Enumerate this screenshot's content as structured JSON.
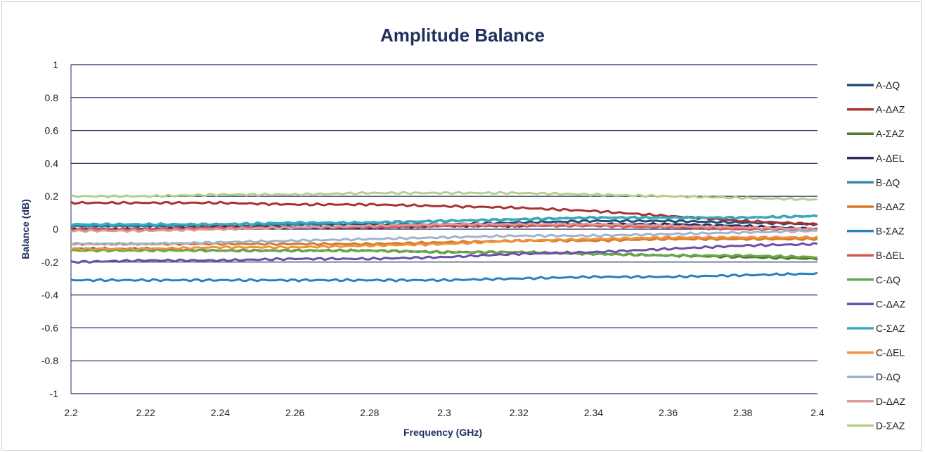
{
  "chart_data": {
    "type": "line",
    "title": "Amplitude Balance",
    "xlabel": "Frequency (GHz)",
    "ylabel": "Balance (dB)",
    "xlim": [
      2.2,
      2.4
    ],
    "ylim": [
      -1,
      1
    ],
    "x_ticks": [
      "2.2",
      "2.22",
      "2.24",
      "2.26",
      "2.28",
      "2.3",
      "2.32",
      "2.34",
      "2.36",
      "2.38",
      "2.4"
    ],
    "y_ticks": [
      "1",
      "0.8",
      "0.6",
      "0.4",
      "0.2",
      "0",
      "-0.2",
      "-0.4",
      "-0.6",
      "-0.8",
      "-1"
    ],
    "grid": "horizontal",
    "legend_position": "right",
    "x": [
      2.2,
      2.22,
      2.24,
      2.26,
      2.28,
      2.3,
      2.32,
      2.34,
      2.36,
      2.38,
      2.4
    ],
    "series": [
      {
        "name": "A-ΔQ",
        "color": "#1f4e79",
        "values": [
          0.02,
          0.02,
          0.02,
          0.03,
          0.03,
          0.03,
          0.04,
          0.05,
          0.05,
          0.04,
          0.03
        ]
      },
      {
        "name": "A-ΔAZ",
        "color": "#a83232",
        "values": [
          0.16,
          0.16,
          0.16,
          0.15,
          0.15,
          0.14,
          0.13,
          0.11,
          0.08,
          0.05,
          0.03
        ]
      },
      {
        "name": "A-ΣAZ",
        "color": "#4f7a28",
        "values": [
          -0.12,
          -0.12,
          -0.13,
          -0.13,
          -0.13,
          -0.14,
          -0.14,
          -0.15,
          -0.16,
          -0.17,
          -0.18
        ]
      },
      {
        "name": "A-ΔEL",
        "color": "#2e2a5a",
        "values": [
          0.0,
          0.0,
          0.01,
          0.01,
          0.01,
          0.02,
          0.02,
          0.03,
          0.03,
          0.02,
          0.0
        ]
      },
      {
        "name": "B-ΔQ",
        "color": "#2f8aa8",
        "values": [
          0.02,
          0.02,
          0.03,
          0.03,
          0.04,
          0.05,
          0.06,
          0.07,
          0.07,
          0.07,
          0.08
        ]
      },
      {
        "name": "B-ΔAZ",
        "color": "#d57a28",
        "values": [
          -0.09,
          -0.09,
          -0.09,
          -0.09,
          -0.09,
          -0.08,
          -0.07,
          -0.07,
          -0.06,
          -0.06,
          -0.06
        ]
      },
      {
        "name": "B-ΣAZ",
        "color": "#2a7fbf",
        "values": [
          -0.31,
          -0.31,
          -0.31,
          -0.31,
          -0.31,
          -0.31,
          -0.3,
          -0.29,
          -0.29,
          -0.28,
          -0.27
        ]
      },
      {
        "name": "B-ΔEL",
        "color": "#d9534f",
        "values": [
          0.0,
          0.0,
          0.01,
          0.01,
          0.01,
          0.02,
          0.02,
          0.02,
          0.01,
          0.0,
          0.0
        ]
      },
      {
        "name": "C-ΔQ",
        "color": "#6aa84f",
        "values": [
          -0.13,
          -0.13,
          -0.13,
          -0.13,
          -0.13,
          -0.14,
          -0.14,
          -0.15,
          -0.16,
          -0.16,
          -0.17
        ]
      },
      {
        "name": "C-ΔAZ",
        "color": "#6b4fa8",
        "values": [
          -0.2,
          -0.19,
          -0.19,
          -0.18,
          -0.18,
          -0.17,
          -0.15,
          -0.14,
          -0.12,
          -0.1,
          -0.09
        ]
      },
      {
        "name": "C-ΣAZ",
        "color": "#3aaabf",
        "values": [
          0.03,
          0.03,
          0.03,
          0.04,
          0.04,
          0.05,
          0.06,
          0.07,
          0.07,
          0.07,
          0.08
        ]
      },
      {
        "name": "C-ΔEL",
        "color": "#f0923a",
        "values": [
          -0.12,
          -0.12,
          -0.11,
          -0.11,
          -0.1,
          -0.09,
          -0.07,
          -0.06,
          -0.05,
          -0.05,
          -0.05
        ]
      },
      {
        "name": "D-ΔQ",
        "color": "#9fb3d1",
        "values": [
          -0.09,
          -0.09,
          -0.08,
          -0.07,
          -0.06,
          -0.05,
          -0.04,
          -0.04,
          -0.03,
          -0.02,
          -0.01
        ]
      },
      {
        "name": "D-ΔAZ",
        "color": "#d99a9a",
        "values": [
          -0.01,
          -0.01,
          0.0,
          0.01,
          0.02,
          0.03,
          0.03,
          0.03,
          0.02,
          0.01,
          0.0
        ]
      },
      {
        "name": "D-ΣAZ",
        "color": "#b5cf8a",
        "values": [
          0.2,
          0.2,
          0.21,
          0.21,
          0.22,
          0.22,
          0.22,
          0.21,
          0.2,
          0.19,
          0.18
        ]
      }
    ]
  },
  "colors": {
    "title": "#1f2f5f",
    "gridline": "#1f2f5f",
    "frame": "#c9c9c9"
  }
}
